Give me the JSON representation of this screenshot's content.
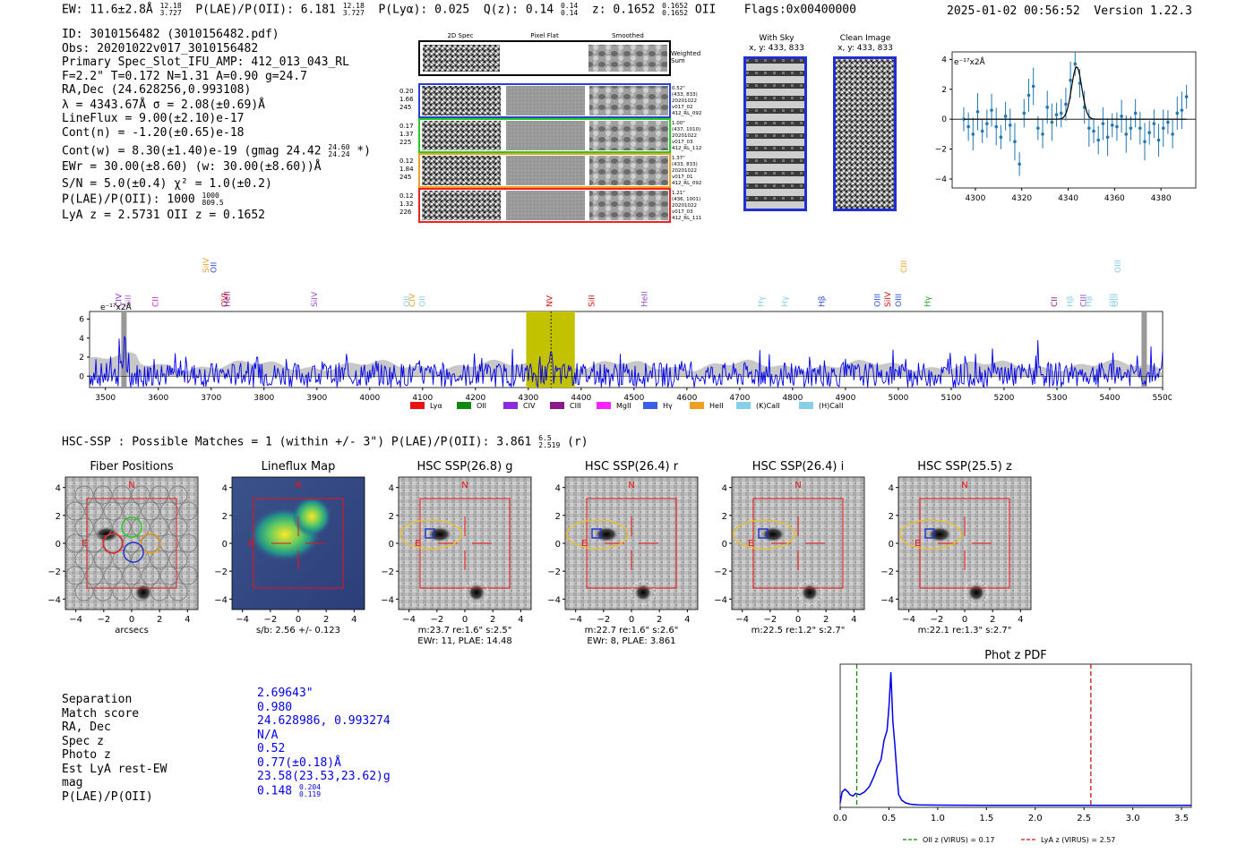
{
  "header": {
    "ew": "EW: 11.6±2.8Å",
    "ew_up": "12.18",
    "ew_lo": "3.727",
    "plae": "P(LAE)/P(OII): 6.181",
    "plae_up": "12.18",
    "plae_lo": "3.727",
    "plya": "P(Lyα): 0.025",
    "qz": "Q(z): 0.14",
    "qz_up": "0.14",
    "qz_lo": "0.14",
    "z": "z: 0.1652",
    "z_up": "0.1652",
    "z_lo": "0.1652",
    "z_line": "OII",
    "flags": "Flags:0x00400000",
    "datetime": "2025-01-02 00:56:52",
    "version": "Version 1.22.3"
  },
  "info": {
    "id": "ID: 3010156482 (3010156482.pdf)",
    "obs": "Obs: 20201022v017_3010156482",
    "primary": "Primary Spec_Slot_IFU_AMP: 412_013_043_RL",
    "fwhm": "F=2.2\"  T=0.172  N=1.31  A=0.90  g=24.7",
    "radec": "RA,Dec (24.628256,0.993108)",
    "lambda": "λ = 4343.67Å  σ = 2.08(±0.69)Å",
    "lineflux": "LineFlux = 9.00(±2.10)e-17",
    "contn": "Cont(n) = -1.20(±0.65)e-18",
    "contw": "Cont(w) = 8.30(±1.40)e-19 (gmag 24.42",
    "contw_up": "24.60",
    "contw_lo": "24.24",
    "contw_end": "*)",
    "ewr": "EWr = 30.00(±8.60) (w: 30.00(±8.60))Å",
    "sn": "S/N = 5.0(±0.4)  χ² = 1.0(±0.2)",
    "plae": "P(LAE)/P(OII): 1000",
    "plae_up": "1000",
    "plae_lo": "809.5",
    "lyaz": "LyA z = 2.5731  OII z = 0.1652"
  },
  "cutouts": {
    "col_2d": "2D Spec",
    "col_flat": "Pixel Flat",
    "col_smooth": "Smoothed",
    "weighted": "Weighted\nSum",
    "rows": [
      {
        "left": [
          "0.20",
          "1.66",
          "245"
        ],
        "right": [
          "0.52\"",
          "(433, 833)",
          "20201022",
          "v017_02",
          "412_RL_092"
        ],
        "color": "#2a3fd8"
      },
      {
        "left": [
          "0.17",
          "1.37",
          "225"
        ],
        "right": [
          "1.00\"",
          "(437, 1010)",
          "20201022",
          "v017_03",
          "412_RL_112"
        ],
        "color": "#22cc22"
      },
      {
        "left": [
          "0.12",
          "1.84",
          "245"
        ],
        "right": [
          "1.37\"",
          "(433, 833)",
          "20201022",
          "v017_01",
          "412_RL_092"
        ],
        "color": "#f0a020"
      },
      {
        "left": [
          "0.12",
          "1.32",
          "226"
        ],
        "right": [
          "1.21\"",
          "(436, 1001)",
          "20201022",
          "v017_03",
          "412_RL_111"
        ],
        "color": "#ee2020"
      }
    ],
    "with_sky": "With Sky",
    "with_sky_xy": "x, y: 433, 833",
    "clean": "Clean Image",
    "clean_xy": "x, y: 433, 833"
  },
  "zoom_chart": {
    "ylabel": "e⁻¹⁷x2Å",
    "yticks": [
      "4",
      "2",
      "0",
      "−2",
      "−4"
    ],
    "xticks": [
      "4300",
      "4320",
      "4340",
      "4360",
      "4380"
    ]
  },
  "spectrum": {
    "ylabel": "e⁻¹⁷x2Å",
    "yticks": [
      "6",
      "4",
      "2",
      "0"
    ],
    "xticks": [
      "3500",
      "3600",
      "3700",
      "3800",
      "3900",
      "4000",
      "4100",
      "4200",
      "4300",
      "4400",
      "4500",
      "4600",
      "4700",
      "4800",
      "4900",
      "5000",
      "5100",
      "5200",
      "5300",
      "5400",
      "5500"
    ],
    "lines": [
      {
        "label": "CIV",
        "color": "#8a2be2",
        "row": "low"
      },
      {
        "label": "SiII",
        "color": "#b060e0",
        "row": "low"
      },
      {
        "label": "CII",
        "color": "#d020c0",
        "row": "low"
      },
      {
        "label": "SiIV",
        "color": "#f0a020",
        "row": "high"
      },
      {
        "label": "OII",
        "color": "#3050e0",
        "row": "high"
      },
      {
        "label": "OVI",
        "color": "#dd1010",
        "row": "low"
      },
      {
        "label": "HeII",
        "color": "#8a1a8a",
        "row": "low"
      },
      {
        "label": "SiIV",
        "color": "#9a4ad0",
        "row": "low"
      },
      {
        "label": "OII",
        "color": "#87ceeb",
        "row": "low"
      },
      {
        "label": "CIV",
        "color": "#f0a020",
        "row": "low"
      },
      {
        "label": "OII",
        "color": "#87ceeb",
        "row": "low"
      },
      {
        "label": "NV",
        "color": "#dd1010",
        "row": "low"
      },
      {
        "label": "SiII",
        "color": "#dd1010",
        "row": "low"
      },
      {
        "label": "HeII",
        "color": "#9a4ad0",
        "row": "low"
      },
      {
        "label": "Hγ",
        "color": "#87ceeb",
        "row": "low"
      },
      {
        "label": "Hγ",
        "color": "#87ceeb",
        "row": "low"
      },
      {
        "label": "Hβ",
        "color": "#3050e0",
        "row": "low"
      },
      {
        "label": "OIII",
        "color": "#3050e0",
        "row": "low"
      },
      {
        "label": "SiIV",
        "color": "#dd1010",
        "row": "low"
      },
      {
        "label": "OIII",
        "color": "#3050e0",
        "row": "low"
      },
      {
        "label": "Hγ",
        "color": "#22aa22",
        "row": "low"
      },
      {
        "label": "CIII",
        "color": "#f0a020",
        "row": "high"
      },
      {
        "label": "CII",
        "color": "#8a1a8a",
        "row": "low"
      },
      {
        "label": "Hβ",
        "color": "#87ceeb",
        "row": "low"
      },
      {
        "label": "CIII",
        "color": "#9a4ad0",
        "row": "low"
      },
      {
        "label": "Hβ",
        "color": "#87ceeb",
        "row": "low"
      },
      {
        "label": "OIII",
        "color": "#87ceeb",
        "row": "low"
      },
      {
        "label": "OIII",
        "color": "#87ceeb",
        "row": "low"
      },
      {
        "label": "OIII",
        "color": "#87ceeb",
        "row": "high"
      }
    ],
    "legend": [
      {
        "label": "Lyα",
        "color": "#ee1111"
      },
      {
        "label": "OII",
        "color": "#118811"
      },
      {
        "label": "CIV",
        "color": "#8a2be2"
      },
      {
        "label": "CIII",
        "color": "#8a1a8a"
      },
      {
        "label": "MgII",
        "color": "#ff22ff"
      },
      {
        "label": "Hγ",
        "color": "#3a5ee8"
      },
      {
        "label": "HeII",
        "color": "#f0a020"
      },
      {
        "label": "(K)CaII",
        "color": "#87ceeb"
      },
      {
        "label": "(H)CaII",
        "color": "#87ceeb"
      }
    ]
  },
  "hsc": {
    "heading": "HSC-SSP : Possible Matches = 1 (within +/- 3\")  P(LAE)/P(OII): 3.861",
    "heading_up": "6.5",
    "heading_lo": "2.519",
    "heading_end": "(r)",
    "panels": [
      {
        "title": "Fiber Positions",
        "caption1": "arcsecs",
        "caption2": ""
      },
      {
        "title": "Lineflux Map",
        "caption1": "s/b: 2.56 +/- 0.123",
        "caption2": ""
      },
      {
        "title": "HSC SSP(26.8) g",
        "caption1": "m:23.7  re:1.6\"  s:2.5\"",
        "caption2": "EWr: 11, PLAE: 14.48"
      },
      {
        "title": "HSC SSP(26.4) r",
        "caption1": "m:22.7  re:1.6\"  s:2.6\"",
        "caption2": "EWr: 8, PLAE: 3.861"
      },
      {
        "title": "HSC SSP(26.4) i",
        "caption1": "m:22.5  re:1.2\"  s:2.7\"",
        "caption2": ""
      },
      {
        "title": "HSC SSP(25.5) z",
        "caption1": "m:22.1  re:1.3\"  s:2.7\"",
        "caption2": ""
      }
    ],
    "north": "N",
    "east": "E",
    "ticks": [
      "4",
      "2",
      "0",
      "−2",
      "−4"
    ],
    "xticks": [
      "−4",
      "−2",
      "0",
      "2",
      "4"
    ]
  },
  "match": {
    "labels": [
      "Separation",
      "Match score",
      "RA, Dec",
      "Spec z",
      "Photo z",
      "Est LyA rest-EW",
      "mag",
      "P(LAE)/P(OII)"
    ],
    "values": [
      "2.69643\"",
      "0.980",
      "24.628986, 0.993274",
      "N/A",
      "0.52",
      "0.77(±0.18)Å",
      "23.58(23.53,23.62)g",
      "0.148"
    ],
    "plae_up": "0.204",
    "plae_lo": "0.119"
  },
  "chart_data": [
    {
      "type": "line",
      "title": "Phot z PDF",
      "xlabel": "",
      "ylabel": "",
      "xlim": [
        0.0,
        3.6
      ],
      "xticks": [
        "0.0",
        "0.5",
        "1.0",
        "1.5",
        "2.0",
        "2.5",
        "3.0",
        "3.5"
      ],
      "x": [
        0.0,
        0.02,
        0.05,
        0.08,
        0.1,
        0.13,
        0.16,
        0.2,
        0.25,
        0.3,
        0.35,
        0.38,
        0.42,
        0.45,
        0.48,
        0.5,
        0.52,
        0.54,
        0.56,
        0.58,
        0.6,
        0.63,
        0.67,
        0.72,
        0.8,
        1.0,
        1.5,
        2.0,
        2.5,
        3.0,
        3.6
      ],
      "y": [
        0.02,
        0.1,
        0.12,
        0.1,
        0.08,
        0.07,
        0.09,
        0.08,
        0.1,
        0.14,
        0.22,
        0.28,
        0.34,
        0.48,
        0.55,
        0.72,
        0.98,
        0.62,
        0.45,
        0.25,
        0.08,
        0.04,
        0.02,
        0.01,
        0.005,
        0.003,
        0.002,
        0.002,
        0.002,
        0.002,
        0.002
      ],
      "vlines": [
        {
          "x": 0.17,
          "color": "#118811",
          "label": "OII z (VIRUS) = 0.17"
        },
        {
          "x": 2.57,
          "color": "#dd1010",
          "label": "LyA z (VIRUS) = 2.57"
        }
      ]
    },
    {
      "type": "scatter",
      "title": "",
      "xlim": [
        4290,
        4395
      ],
      "ylim": [
        -4.6,
        4.5
      ],
      "x": [
        4295,
        4297,
        4299,
        4301,
        4303,
        4305,
        4307,
        4309,
        4311,
        4313,
        4315,
        4317,
        4319,
        4321,
        4323,
        4325,
        4327,
        4329,
        4331,
        4333,
        4335,
        4337,
        4339,
        4341,
        4343,
        4345,
        4347,
        4349,
        4351,
        4353,
        4355,
        4357,
        4359,
        4361,
        4363,
        4365,
        4367,
        4369,
        4371,
        4373,
        4375,
        4377,
        4379,
        4381,
        4383,
        4385,
        4387,
        4389,
        4391
      ],
      "values": [
        0.0,
        -0.5,
        -1.0,
        0.5,
        -0.8,
        -0.3,
        0.6,
        -0.5,
        -1.2,
        0.2,
        -0.4,
        -1.5,
        -3.0,
        0.4,
        1.6,
        2.2,
        -0.6,
        -1.0,
        0.8,
        -0.2,
        0.3,
        0.4,
        1.0,
        2.6,
        3.7,
        2.4,
        0.8,
        -0.6,
        -0.8,
        -1.4,
        -0.3,
        -1.2,
        -0.4,
        -0.5,
        0.2,
        -1.0,
        -0.6,
        0.4,
        -0.6,
        -1.5,
        -0.9,
        -0.3,
        -1.4,
        -0.6,
        -0.2,
        -1.0,
        0.4,
        0.6,
        1.5
      ],
      "fit": "gaussian"
    }
  ]
}
